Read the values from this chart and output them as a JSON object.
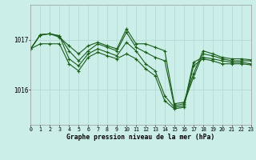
{
  "title": "Graphe pression niveau de la mer (hPa)",
  "bg_color": "#cceee8",
  "grid_color": "#b8ddd8",
  "line_color": "#1a5c1a",
  "xlim_min": 0,
  "xlim_max": 23,
  "ylim_min": 1015.3,
  "ylim_max": 1017.7,
  "yticks": [
    1016,
    1017
  ],
  "xticks": [
    0,
    1,
    2,
    3,
    4,
    5,
    6,
    7,
    8,
    9,
    10,
    11,
    12,
    13,
    14,
    15,
    16,
    17,
    18,
    19,
    20,
    21,
    22,
    23
  ],
  "series": [
    [
      1016.82,
      1017.1,
      1017.12,
      1017.05,
      1016.88,
      1016.72,
      1016.88,
      1016.95,
      1016.88,
      1016.82,
      1017.22,
      1016.92,
      1016.92,
      1016.85,
      1016.78,
      1015.72,
      1015.75,
      1016.32,
      1016.78,
      1016.72,
      1016.65,
      1016.62,
      1016.62,
      1016.6
    ],
    [
      1016.82,
      1017.1,
      1017.12,
      1017.08,
      1016.78,
      1016.58,
      1016.78,
      1016.92,
      1016.85,
      1016.78,
      1017.15,
      1016.85,
      1016.75,
      1016.65,
      1016.58,
      1015.68,
      1015.72,
      1016.25,
      1016.72,
      1016.68,
      1016.62,
      1016.58,
      1016.58,
      1016.58
    ],
    [
      1016.82,
      1017.1,
      1017.12,
      1017.08,
      1016.62,
      1016.48,
      1016.72,
      1016.82,
      1016.75,
      1016.68,
      1016.95,
      1016.78,
      1016.52,
      1016.38,
      1015.88,
      1015.65,
      1015.68,
      1016.55,
      1016.65,
      1016.62,
      1016.58,
      1016.55,
      1016.55,
      1016.52
    ],
    [
      1016.82,
      1016.92,
      1016.92,
      1016.92,
      1016.52,
      1016.38,
      1016.65,
      1016.75,
      1016.68,
      1016.62,
      1016.72,
      1016.62,
      1016.42,
      1016.28,
      1015.78,
      1015.62,
      1015.65,
      1016.48,
      1016.62,
      1016.58,
      1016.52,
      1016.52,
      1016.52,
      1016.5
    ]
  ]
}
